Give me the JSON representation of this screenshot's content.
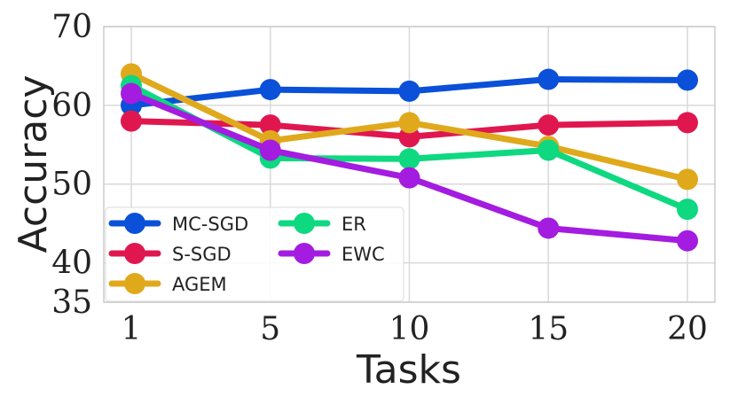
{
  "chart_data": {
    "type": "line",
    "title": "",
    "xlabel": "Tasks",
    "ylabel": "Accuracy",
    "x": [
      1,
      5,
      10,
      15,
      20
    ],
    "xticks": [
      "1",
      "5",
      "10",
      "15",
      "20"
    ],
    "yticks": [
      "35",
      "40",
      "50",
      "60",
      "70"
    ],
    "ylim": [
      35,
      70
    ],
    "grid": true,
    "legend_position": "bottom-left",
    "series": [
      {
        "name": "MC-SGD",
        "color": "#0a50d8",
        "values": [
          60.0,
          62.0,
          61.8,
          63.3,
          63.2
        ]
      },
      {
        "name": "S-SGD",
        "color": "#e0174f",
        "values": [
          58.0,
          57.5,
          56.0,
          57.5,
          57.8
        ]
      },
      {
        "name": "AGEM",
        "color": "#e0a91c",
        "values": [
          64.0,
          55.5,
          57.8,
          54.8,
          50.6
        ]
      },
      {
        "name": "ER",
        "color": "#0ed880",
        "values": [
          62.5,
          53.3,
          53.2,
          54.3,
          46.8
        ]
      },
      {
        "name": "EWC",
        "color": "#a31ce0",
        "values": [
          61.5,
          54.3,
          50.8,
          44.4,
          42.8
        ]
      }
    ]
  }
}
